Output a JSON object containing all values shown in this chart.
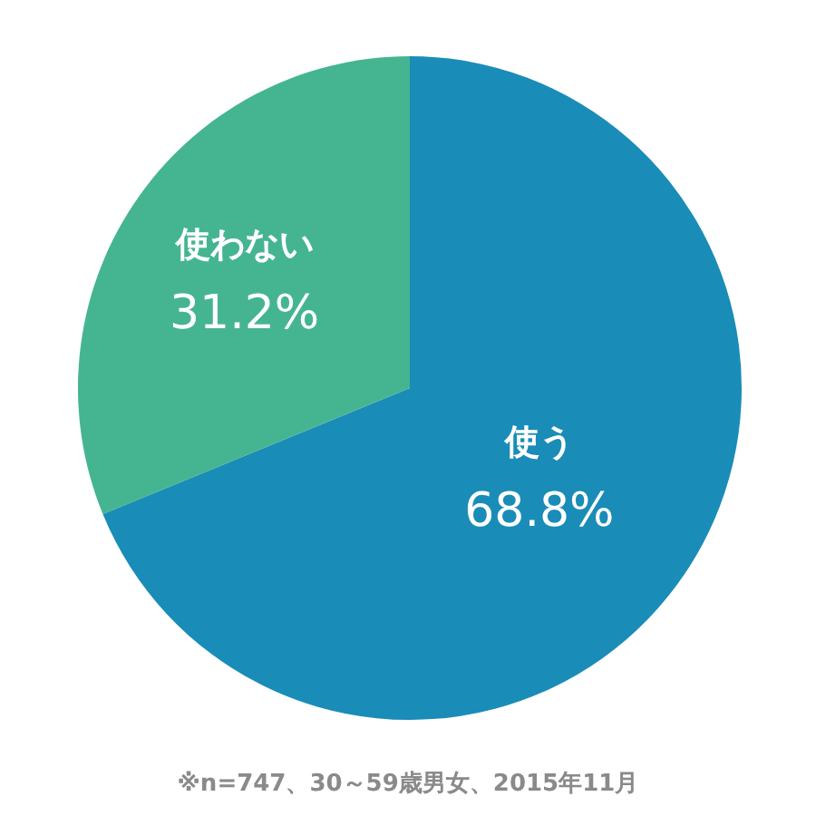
{
  "chart_data": {
    "type": "pie",
    "categories": [
      "使う",
      "使わない"
    ],
    "values": [
      68.8,
      31.2
    ],
    "colors": [
      "#1a8cb8",
      "#45b591"
    ],
    "value_labels": [
      "68.8%",
      "31.2%"
    ],
    "annotations": [
      "※n=747、30～59歳男女、2015年11月"
    ]
  }
}
